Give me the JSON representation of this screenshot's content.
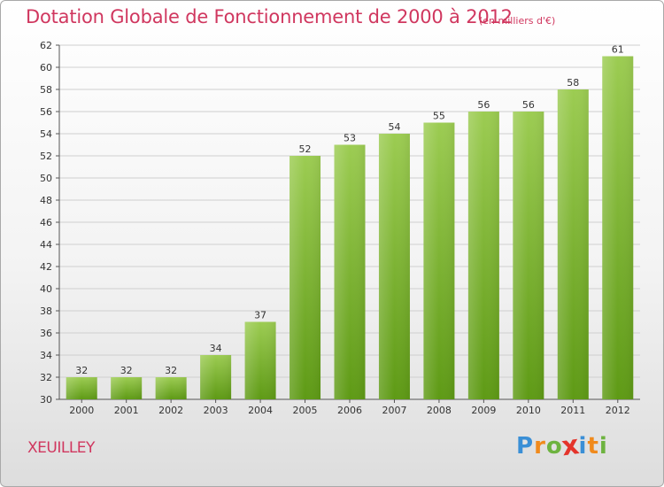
{
  "header": {
    "title": "Dotation Globale de Fonctionnement de 2000 à 2012",
    "subtitle": "(en milliers d'€)"
  },
  "footer": {
    "commune": "XEUILLEY",
    "brand": "Proxiti",
    "brand_letters": [
      {
        "char": "P",
        "color": "#3a8fd6"
      },
      {
        "char": "r",
        "color": "#f08a1c"
      },
      {
        "char": "o",
        "color": "#6db33f"
      },
      {
        "char": "x",
        "color": "#e4342b"
      },
      {
        "char": "i",
        "color": "#3a8fd6"
      },
      {
        "char": "t",
        "color": "#f08a1c"
      },
      {
        "char": "i",
        "color": "#6db33f"
      }
    ]
  },
  "colors": {
    "accent": "#d0375f",
    "bar_top": "#9ccc52",
    "bar_bottom": "#5e9a15",
    "grid": "#cfcfcf",
    "axis": "#555555"
  },
  "chart_data": {
    "type": "bar",
    "title": "Dotation Globale de Fonctionnement de 2000 à 2012",
    "subtitle": "(en milliers d'€)",
    "xlabel": "",
    "ylabel": "",
    "categories": [
      "2000",
      "2001",
      "2002",
      "2003",
      "2004",
      "2005",
      "2006",
      "2007",
      "2008",
      "2009",
      "2010",
      "2011",
      "2012"
    ],
    "values": [
      32,
      32,
      32,
      34,
      37,
      52,
      53,
      54,
      55,
      56,
      56,
      58,
      61
    ],
    "ylim": [
      30,
      62
    ],
    "yticks": [
      30,
      32,
      34,
      36,
      38,
      40,
      42,
      44,
      46,
      48,
      50,
      52,
      54,
      56,
      58,
      60,
      62
    ],
    "grid": true,
    "legend": "none"
  }
}
